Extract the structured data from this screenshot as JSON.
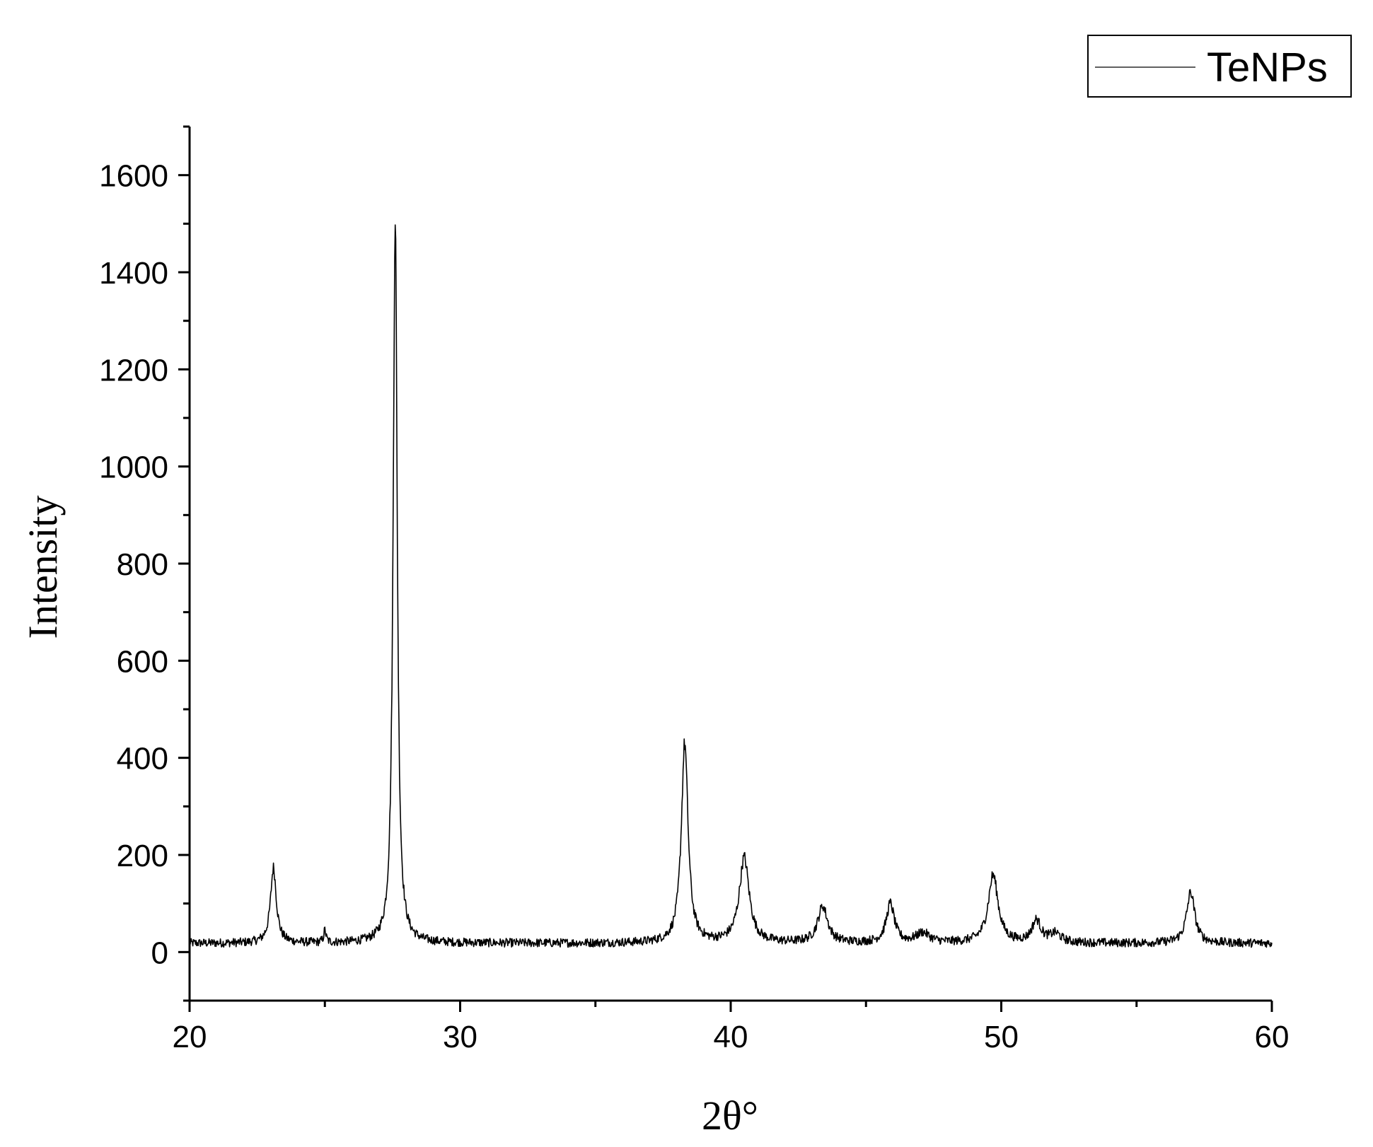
{
  "chart_data": {
    "type": "line",
    "title": "",
    "xlabel": "2θ°",
    "ylabel": "Intensity",
    "xlim": [
      20,
      60
    ],
    "ylim": [
      -100,
      1700
    ],
    "x_ticks": [
      20,
      30,
      40,
      50,
      60
    ],
    "y_ticks": [
      0,
      200,
      400,
      600,
      800,
      1000,
      1200,
      1400,
      1600
    ],
    "grid": false,
    "legend_position": "top-right",
    "baseline": 18,
    "noise_amplitude": 9,
    "series": [
      {
        "name": "TeNPs",
        "color": "#000000",
        "peaks": [
          {
            "x": 23.1,
            "height": 155,
            "width": 0.13
          },
          {
            "x": 25.0,
            "height": 25,
            "width": 0.05
          },
          {
            "x": 27.6,
            "height": 1505,
            "width": 0.09
          },
          {
            "x": 38.3,
            "height": 410,
            "width": 0.15
          },
          {
            "x": 40.5,
            "height": 175,
            "width": 0.22
          },
          {
            "x": 43.4,
            "height": 75,
            "width": 0.22
          },
          {
            "x": 45.9,
            "height": 80,
            "width": 0.18
          },
          {
            "x": 47.1,
            "height": 20,
            "width": 0.3
          },
          {
            "x": 49.7,
            "height": 140,
            "width": 0.22
          },
          {
            "x": 51.3,
            "height": 45,
            "width": 0.2
          },
          {
            "x": 52.0,
            "height": 18,
            "width": 0.25
          },
          {
            "x": 57.0,
            "height": 105,
            "width": 0.18
          }
        ]
      }
    ]
  },
  "legend": {
    "entries": [
      {
        "label": "TeNPs",
        "color": "#000000"
      }
    ]
  }
}
